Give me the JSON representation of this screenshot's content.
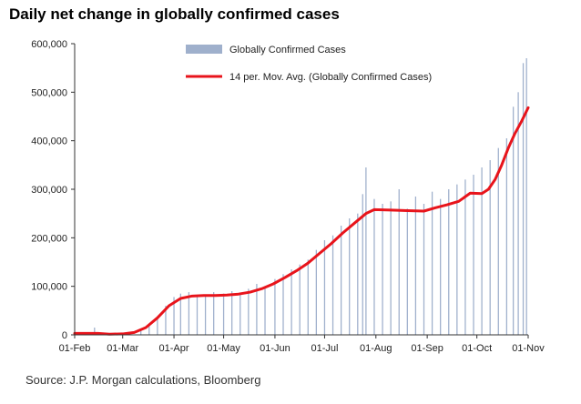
{
  "title": "Daily net change in globally confirmed cases",
  "source": "Source: J.P. Morgan calculations, Bloomberg",
  "colors": {
    "bars": "#9fb0cc",
    "line": "#e8141b",
    "axis": "#333333"
  },
  "chart_data": {
    "type": "bar",
    "title": "Daily net change in globally confirmed cases",
    "xlabel": "",
    "ylabel": "",
    "ylim": [
      0,
      600000
    ],
    "grid": false,
    "legend_position": "top",
    "y_ticks": [
      "0",
      "100,000",
      "200,000",
      "300,000",
      "400,000",
      "500,000",
      "600,000"
    ],
    "y_tick_values": [
      0,
      100000,
      200000,
      300000,
      400000,
      500000,
      600000
    ],
    "x_tick_labels": [
      "01-Feb",
      "01-Mar",
      "01-Apr",
      "01-May",
      "01-Jun",
      "01-Jul",
      "01-Aug",
      "01-Sep",
      "01-Oct",
      "01-Nov"
    ],
    "x_tick_dates": [
      "2020-02-01",
      "2020-03-01",
      "2020-04-01",
      "2020-05-01",
      "2020-06-01",
      "2020-07-01",
      "2020-08-01",
      "2020-09-01",
      "2020-10-01",
      "2020-11-01"
    ],
    "x_range": [
      "2020-02-01",
      "2020-11-01"
    ],
    "series": [
      {
        "name": "Globally Confirmed Cases",
        "kind": "bar",
        "points": [
          [
            "2020-02-01",
            2000
          ],
          [
            "2020-02-08",
            3000
          ],
          [
            "2020-02-13",
            15000
          ],
          [
            "2020-02-20",
            1000
          ],
          [
            "2020-02-27",
            2000
          ],
          [
            "2020-03-05",
            4000
          ],
          [
            "2020-03-12",
            10000
          ],
          [
            "2020-03-17",
            20000
          ],
          [
            "2020-03-22",
            35000
          ],
          [
            "2020-03-27",
            60000
          ],
          [
            "2020-04-01",
            78000
          ],
          [
            "2020-04-05",
            85000
          ],
          [
            "2020-04-10",
            88000
          ],
          [
            "2020-04-15",
            80000
          ],
          [
            "2020-04-20",
            82000
          ],
          [
            "2020-04-25",
            88000
          ],
          [
            "2020-05-01",
            85000
          ],
          [
            "2020-05-06",
            90000
          ],
          [
            "2020-05-11",
            85000
          ],
          [
            "2020-05-16",
            95000
          ],
          [
            "2020-05-21",
            105000
          ],
          [
            "2020-05-26",
            100000
          ],
          [
            "2020-06-01",
            115000
          ],
          [
            "2020-06-06",
            125000
          ],
          [
            "2020-06-11",
            135000
          ],
          [
            "2020-06-16",
            145000
          ],
          [
            "2020-06-21",
            155000
          ],
          [
            "2020-06-26",
            175000
          ],
          [
            "2020-07-01",
            195000
          ],
          [
            "2020-07-06",
            205000
          ],
          [
            "2020-07-11",
            225000
          ],
          [
            "2020-07-16",
            240000
          ],
          [
            "2020-07-21",
            250000
          ],
          [
            "2020-07-24",
            290000
          ],
          [
            "2020-07-26",
            345000
          ],
          [
            "2020-07-31",
            280000
          ],
          [
            "2020-08-05",
            270000
          ],
          [
            "2020-08-10",
            275000
          ],
          [
            "2020-08-15",
            300000
          ],
          [
            "2020-08-20",
            260000
          ],
          [
            "2020-08-25",
            285000
          ],
          [
            "2020-08-30",
            270000
          ],
          [
            "2020-09-04",
            295000
          ],
          [
            "2020-09-09",
            280000
          ],
          [
            "2020-09-14",
            300000
          ],
          [
            "2020-09-19",
            310000
          ],
          [
            "2020-09-24",
            320000
          ],
          [
            "2020-09-29",
            330000
          ],
          [
            "2020-10-04",
            345000
          ],
          [
            "2020-10-09",
            360000
          ],
          [
            "2020-10-14",
            385000
          ],
          [
            "2020-10-19",
            405000
          ],
          [
            "2020-10-23",
            470000
          ],
          [
            "2020-10-26",
            500000
          ],
          [
            "2020-10-29",
            560000
          ],
          [
            "2020-10-31",
            570000
          ]
        ]
      },
      {
        "name": "14 per. Mov. Avg. (Globally Confirmed Cases)",
        "kind": "line",
        "points": [
          [
            "2020-02-01",
            3000
          ],
          [
            "2020-02-15",
            3000
          ],
          [
            "2020-02-22",
            1500
          ],
          [
            "2020-03-01",
            2000
          ],
          [
            "2020-03-08",
            5000
          ],
          [
            "2020-03-15",
            15000
          ],
          [
            "2020-03-22",
            35000
          ],
          [
            "2020-03-29",
            60000
          ],
          [
            "2020-04-05",
            75000
          ],
          [
            "2020-04-12",
            80000
          ],
          [
            "2020-04-19",
            81000
          ],
          [
            "2020-04-26",
            81000
          ],
          [
            "2020-05-03",
            82000
          ],
          [
            "2020-05-10",
            84000
          ],
          [
            "2020-05-17",
            88000
          ],
          [
            "2020-05-24",
            95000
          ],
          [
            "2020-05-31",
            105000
          ],
          [
            "2020-06-07",
            118000
          ],
          [
            "2020-06-14",
            132000
          ],
          [
            "2020-06-21",
            148000
          ],
          [
            "2020-06-28",
            168000
          ],
          [
            "2020-07-05",
            188000
          ],
          [
            "2020-07-12",
            210000
          ],
          [
            "2020-07-19",
            230000
          ],
          [
            "2020-07-26",
            250000
          ],
          [
            "2020-07-31",
            258000
          ],
          [
            "2020-08-10",
            257000
          ],
          [
            "2020-08-20",
            256000
          ],
          [
            "2020-08-30",
            255000
          ],
          [
            "2020-09-06",
            262000
          ],
          [
            "2020-09-13",
            268000
          ],
          [
            "2020-09-20",
            275000
          ],
          [
            "2020-09-27",
            292000
          ],
          [
            "2020-10-04",
            291000
          ],
          [
            "2020-10-08",
            300000
          ],
          [
            "2020-10-12",
            320000
          ],
          [
            "2020-10-16",
            350000
          ],
          [
            "2020-10-20",
            385000
          ],
          [
            "2020-10-24",
            415000
          ],
          [
            "2020-10-28",
            440000
          ],
          [
            "2020-11-01",
            468000
          ]
        ]
      }
    ]
  }
}
